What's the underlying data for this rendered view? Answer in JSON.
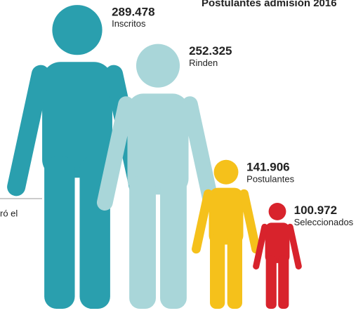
{
  "chart_data": {
    "type": "pictograph",
    "title": "Postulantes admisión 2016",
    "annotation": "ró el",
    "categories": [
      "Inscritos",
      "Rinden",
      "Postulantes",
      "Seleccionados"
    ],
    "values": [
      289478,
      252325,
      141906,
      100972
    ],
    "value_labels": [
      "289.478",
      "252.325",
      "141.906",
      "100.972"
    ],
    "colors": [
      "#2a9fae",
      "#a9d6d9",
      "#f5c11b",
      "#d8232c"
    ]
  }
}
